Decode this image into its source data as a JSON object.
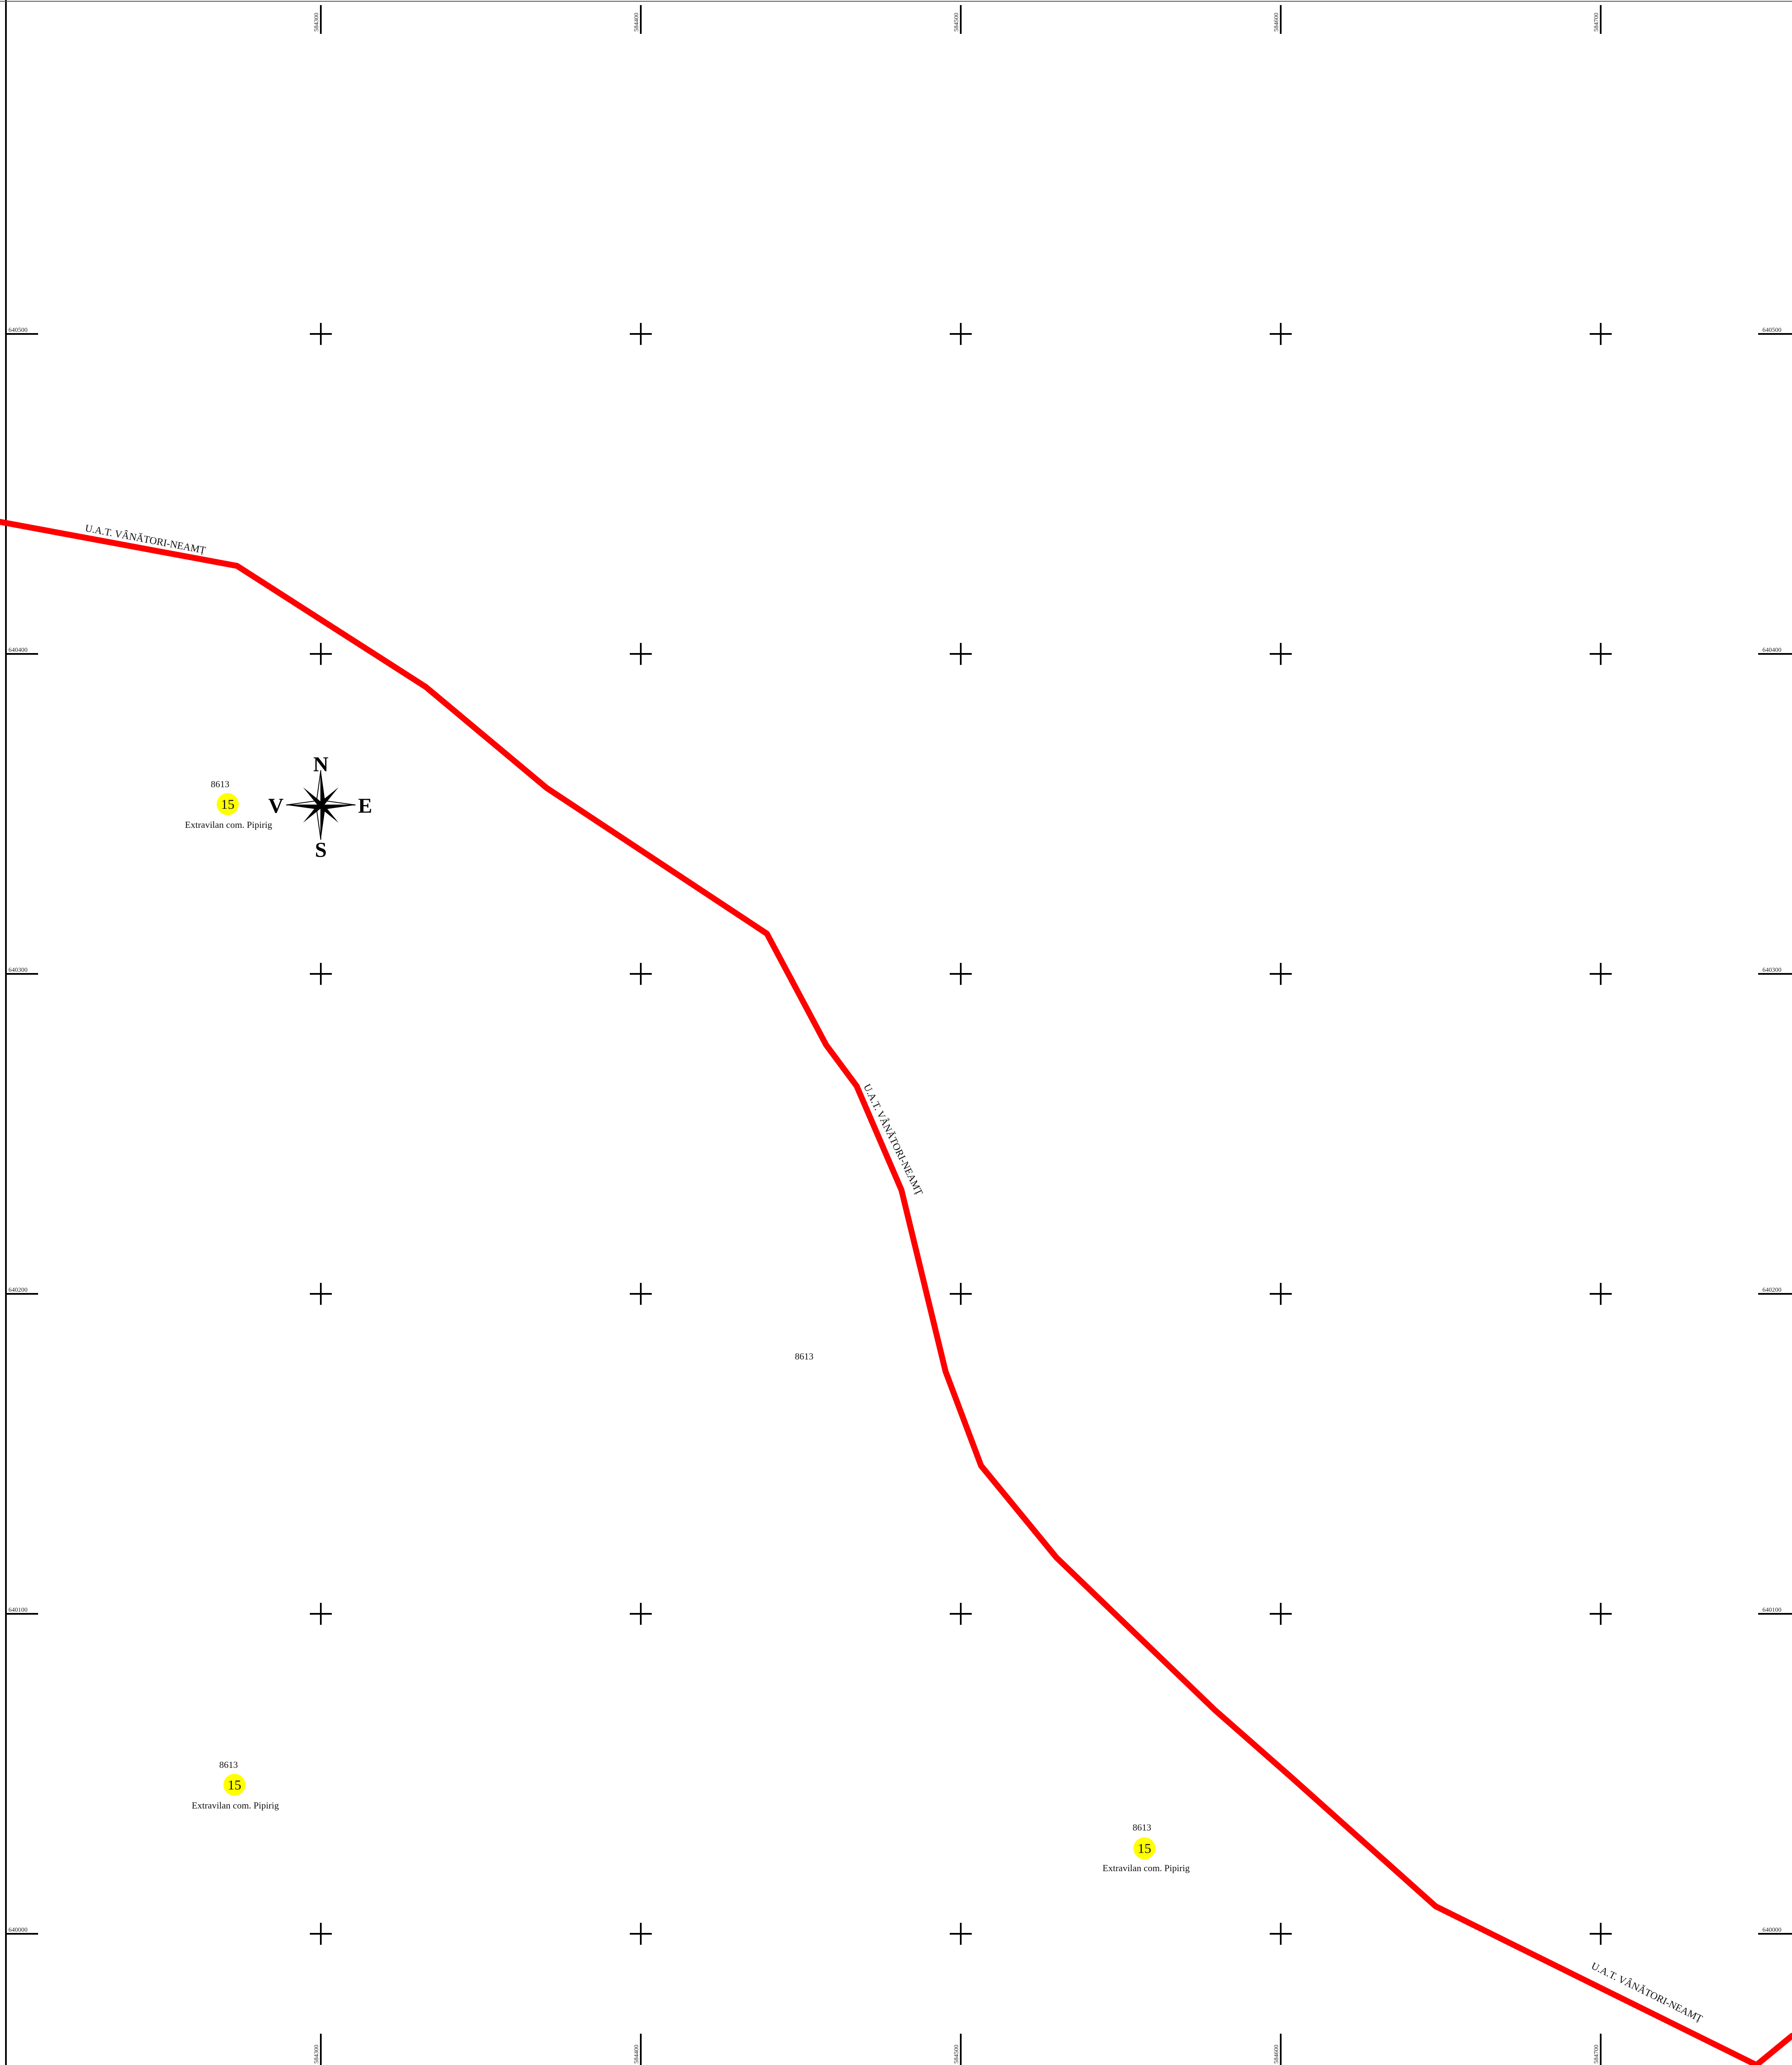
{
  "grid": {
    "easting_labels": [
      "584300",
      "584400",
      "584500",
      "584600",
      "584700"
    ],
    "northing_labels": [
      "640500",
      "640400",
      "640300",
      "640200",
      "640100",
      "640000"
    ]
  },
  "compass": {
    "north": "N",
    "south": "S",
    "east": "E",
    "west": "V"
  },
  "boundary": {
    "color": "#ff0000",
    "labels": [
      "U.A.T. VÂNĂTORI-NEAMȚ",
      "U.A.T. VÂNĂTORI-NEAMȚ",
      "U.A.T. VÂNĂTORI-NEAMȚ"
    ]
  },
  "parcel_center_label": "8613",
  "parcels": [
    {
      "number": "8613",
      "badge": "15",
      "name": "Extravilan com. Pipirig",
      "badge_color": "#ffff00"
    },
    {
      "number": "8613",
      "badge": "15",
      "name": "Extravilan com. Pipirig",
      "badge_color": "#ffff00"
    },
    {
      "number": "8613",
      "badge": "15",
      "name": "Extravilan com. Pipirig",
      "badge_color": "#ffff00"
    }
  ]
}
